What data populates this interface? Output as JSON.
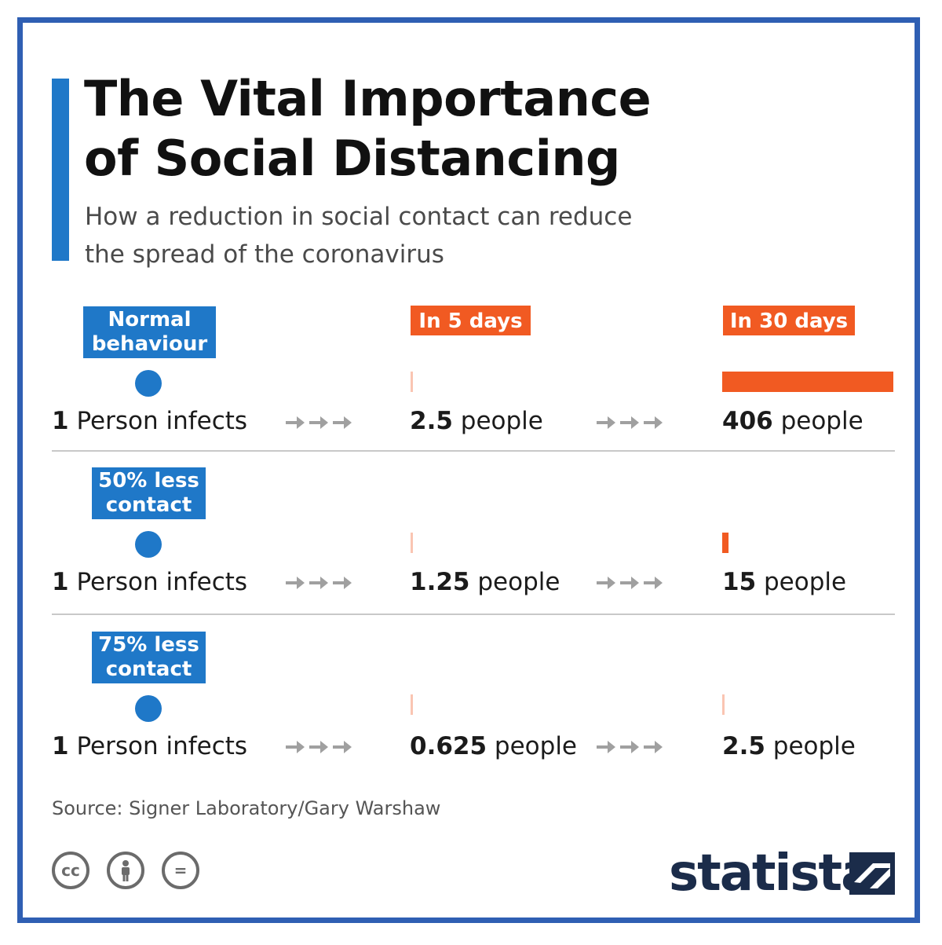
{
  "title_line1": "The Vital Importance",
  "title_line2": "of Social Distancing",
  "subtitle_line1": "How a reduction in social contact can reduce",
  "subtitle_line2": "the spread of the coronavirus",
  "source": "Source: Signer Laboratory/Gary Warshaw",
  "brand": "statista",
  "license_icons": [
    "cc-icon",
    "attribution-icon",
    "no-derivatives-icon"
  ],
  "license_labels": [
    "cc",
    "ı",
    "="
  ],
  "colors": {
    "accent_blue": "#1f78c8",
    "accent_orange": "#f15a22",
    "brand_navy": "#1b2c4a",
    "frame": "#2f5fb3"
  },
  "chart_data": {
    "type": "bar",
    "title": "The Vital Importance of Social Distancing",
    "subtitle": "How a reduction in social contact can reduce the spread of the coronavirus",
    "start_text": "Person infects",
    "start_value": "1",
    "unit": "people",
    "columns": [
      "In 5 days",
      "In 30 days"
    ],
    "series": [
      {
        "name_line1": "Normal",
        "name_line2": "behaviour",
        "values": [
          2.5,
          406
        ],
        "labels": [
          "2.5",
          "406"
        ]
      },
      {
        "name_line1": "50% less",
        "name_line2": "contact",
        "values": [
          1.25,
          15
        ],
        "labels": [
          "1.25",
          "15"
        ]
      },
      {
        "name_line1": "75% less",
        "name_line2": "contact",
        "values": [
          0.625,
          2.5
        ],
        "labels": [
          "0.625",
          "2.5"
        ]
      }
    ],
    "max_value": 406
  }
}
